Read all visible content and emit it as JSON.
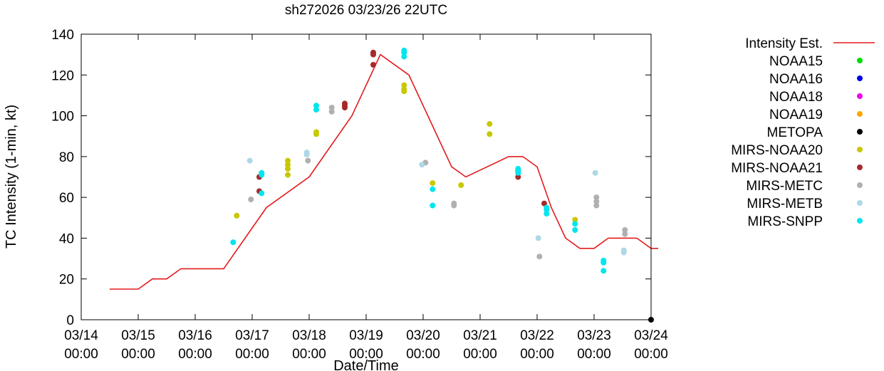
{
  "chart_data": {
    "type": "scatter",
    "title": "sh272026 03/23/26 22UTC",
    "xlabel": "Date/Time",
    "ylabel": "TC Intensity (1-min, kt)",
    "xlim": [
      "2026-03-14T00:00",
      "2026-03-24T00:00"
    ],
    "ylim": [
      0,
      140
    ],
    "x_ticks": [
      {
        "date": "2026-03-14T00:00",
        "l1": "03/14",
        "l2": "00:00"
      },
      {
        "date": "2026-03-15T00:00",
        "l1": "03/15",
        "l2": "00:00"
      },
      {
        "date": "2026-03-16T00:00",
        "l1": "03/16",
        "l2": "00:00"
      },
      {
        "date": "2026-03-17T00:00",
        "l1": "03/17",
        "l2": "00:00"
      },
      {
        "date": "2026-03-18T00:00",
        "l1": "03/18",
        "l2": "00:00"
      },
      {
        "date": "2026-03-19T00:00",
        "l1": "03/19",
        "l2": "00:00"
      },
      {
        "date": "2026-03-20T00:00",
        "l1": "03/20",
        "l2": "00:00"
      },
      {
        "date": "2026-03-21T00:00",
        "l1": "03/21",
        "l2": "00:00"
      },
      {
        "date": "2026-03-22T00:00",
        "l1": "03/22",
        "l2": "00:00"
      },
      {
        "date": "2026-03-23T00:00",
        "l1": "03/23",
        "l2": "00:00"
      },
      {
        "date": "2026-03-24T00:00",
        "l1": "03/24",
        "l2": "00:00"
      }
    ],
    "y_ticks": [
      "0",
      "20",
      "40",
      "60",
      "80",
      "100",
      "120",
      "140"
    ],
    "grid": false,
    "legend_position": "outside-right",
    "series": [
      {
        "name": "Intensity Est.",
        "kind": "line",
        "color": "#e41a1c",
        "points": [
          [
            "2026-03-14T12:00",
            15
          ],
          [
            "2026-03-15T00:00",
            15
          ],
          [
            "2026-03-15T06:00",
            20
          ],
          [
            "2026-03-15T12:00",
            20
          ],
          [
            "2026-03-15T18:00",
            25
          ],
          [
            "2026-03-16T12:00",
            25
          ],
          [
            "2026-03-17T06:00",
            55
          ],
          [
            "2026-03-18T00:00",
            70
          ],
          [
            "2026-03-18T18:00",
            100
          ],
          [
            "2026-03-19T06:00",
            130
          ],
          [
            "2026-03-19T18:00",
            120
          ],
          [
            "2026-03-20T12:00",
            75
          ],
          [
            "2026-03-20T18:00",
            70
          ],
          [
            "2026-03-21T12:00",
            80
          ],
          [
            "2026-03-21T18:00",
            80
          ],
          [
            "2026-03-22T00:00",
            75
          ],
          [
            "2026-03-22T06:00",
            55
          ],
          [
            "2026-03-22T12:00",
            40
          ],
          [
            "2026-03-22T18:00",
            35
          ],
          [
            "2026-03-23T00:00",
            35
          ],
          [
            "2026-03-23T06:00",
            40
          ],
          [
            "2026-03-23T18:00",
            40
          ],
          [
            "2026-03-24T00:00",
            35
          ],
          [
            "2026-03-24T03:00",
            35
          ]
        ]
      },
      {
        "name": "NOAA15",
        "kind": "points",
        "color": "#00dd00",
        "points": []
      },
      {
        "name": "NOAA16",
        "kind": "points",
        "color": "#0000ee",
        "points": []
      },
      {
        "name": "NOAA18",
        "kind": "points",
        "color": "#ee00ee",
        "points": []
      },
      {
        "name": "NOAA19",
        "kind": "points",
        "color": "#ffa500",
        "points": []
      },
      {
        "name": "METOPA",
        "kind": "points",
        "color": "#000000",
        "points": [
          [
            "2026-03-24T00:00",
            0
          ]
        ]
      },
      {
        "name": "MIRS-NOAA20",
        "kind": "points",
        "color": "#c8c800",
        "points": [
          [
            "2026-03-16T17:30",
            51
          ],
          [
            "2026-03-17T15:00",
            78
          ],
          [
            "2026-03-17T15:00",
            76
          ],
          [
            "2026-03-17T15:00",
            74
          ],
          [
            "2026-03-17T15:00",
            71
          ],
          [
            "2026-03-18T03:00",
            92
          ],
          [
            "2026-03-18T03:00",
            91
          ],
          [
            "2026-03-19T16:00",
            115
          ],
          [
            "2026-03-19T16:00",
            113
          ],
          [
            "2026-03-19T16:00",
            112
          ],
          [
            "2026-03-20T04:00",
            67
          ],
          [
            "2026-03-20T16:00",
            66
          ],
          [
            "2026-03-21T04:00",
            96
          ],
          [
            "2026-03-21T04:00",
            91
          ],
          [
            "2026-03-22T16:00",
            49
          ]
        ]
      },
      {
        "name": "MIRS-NOAA21",
        "kind": "points",
        "color": "#a52a2a",
        "points": [
          [
            "2026-03-17T03:00",
            70
          ],
          [
            "2026-03-17T03:00",
            63
          ],
          [
            "2026-03-18T15:00",
            106
          ],
          [
            "2026-03-18T15:00",
            105
          ],
          [
            "2026-03-18T15:00",
            104
          ],
          [
            "2026-03-19T03:00",
            131
          ],
          [
            "2026-03-19T03:00",
            130
          ],
          [
            "2026-03-19T03:00",
            125
          ],
          [
            "2026-03-21T16:00",
            73
          ],
          [
            "2026-03-21T16:00",
            70
          ],
          [
            "2026-03-22T03:00",
            57
          ]
        ]
      },
      {
        "name": "MIRS-METC",
        "kind": "points",
        "color": "#b0b0b0",
        "points": [
          [
            "2026-03-16T23:30",
            59
          ],
          [
            "2026-03-17T23:30",
            78
          ],
          [
            "2026-03-18T09:30",
            104
          ],
          [
            "2026-03-18T09:30",
            102
          ],
          [
            "2026-03-20T01:00",
            77
          ],
          [
            "2026-03-20T13:00",
            57
          ],
          [
            "2026-03-20T13:00",
            56
          ],
          [
            "2026-03-22T01:00",
            31
          ],
          [
            "2026-03-23T01:00",
            60
          ],
          [
            "2026-03-23T01:00",
            58
          ],
          [
            "2026-03-23T01:00",
            56
          ],
          [
            "2026-03-23T13:00",
            44
          ],
          [
            "2026-03-23T13:00",
            42
          ]
        ]
      },
      {
        "name": "MIRS-METB",
        "kind": "points",
        "color": "#add8e6",
        "points": [
          [
            "2026-03-16T23:00",
            78
          ],
          [
            "2026-03-17T23:00",
            82
          ],
          [
            "2026-03-17T23:00",
            81
          ],
          [
            "2026-03-19T23:30",
            76
          ],
          [
            "2026-03-22T00:30",
            40
          ],
          [
            "2026-03-23T00:30",
            72
          ],
          [
            "2026-03-23T12:30",
            34
          ],
          [
            "2026-03-23T12:30",
            33
          ]
        ]
      },
      {
        "name": "MIRS-SNPP",
        "kind": "points",
        "color": "#00e5ee",
        "points": [
          [
            "2026-03-16T16:00",
            38
          ],
          [
            "2026-03-17T04:00",
            72
          ],
          [
            "2026-03-17T04:00",
            71
          ],
          [
            "2026-03-17T04:00",
            62
          ],
          [
            "2026-03-18T03:00",
            105
          ],
          [
            "2026-03-18T03:00",
            103
          ],
          [
            "2026-03-19T16:00",
            132
          ],
          [
            "2026-03-19T16:00",
            131
          ],
          [
            "2026-03-19T16:00",
            129
          ],
          [
            "2026-03-20T04:00",
            64
          ],
          [
            "2026-03-20T04:00",
            56
          ],
          [
            "2026-03-21T16:00",
            74
          ],
          [
            "2026-03-21T16:00",
            73
          ],
          [
            "2026-03-21T16:00",
            72
          ],
          [
            "2026-03-22T04:00",
            55
          ],
          [
            "2026-03-22T04:00",
            54
          ],
          [
            "2026-03-22T04:00",
            52
          ],
          [
            "2026-03-22T16:00",
            47
          ],
          [
            "2026-03-22T16:00",
            44
          ],
          [
            "2026-03-23T04:00",
            29
          ],
          [
            "2026-03-23T04:00",
            28
          ],
          [
            "2026-03-23T04:00",
            24
          ]
        ]
      }
    ]
  }
}
